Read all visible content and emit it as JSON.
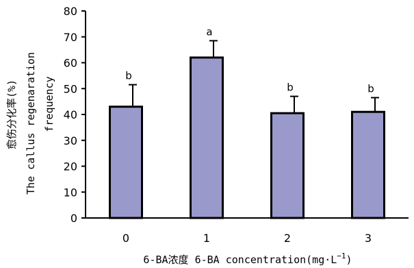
{
  "chart_data": {
    "type": "bar",
    "categories": [
      "0",
      "1",
      "2",
      "3"
    ],
    "values": [
      43,
      62,
      40.5,
      41
    ],
    "errors": [
      8.5,
      6.5,
      6.5,
      5.5
    ],
    "significance": [
      "b",
      "a",
      "b",
      "b"
    ],
    "ylim": [
      0,
      80
    ],
    "yticks": [
      0,
      10,
      20,
      30,
      40,
      50,
      60,
      70,
      80
    ],
    "ylabel_cn": "愈伤分化率(%)",
    "ylabel_en_1": "The callus regenaration",
    "ylabel_en_2": "frequency",
    "xlabel": "6-BA浓度 6-BA concentration(mg·L",
    "xlabel_sup": "−1",
    "xlabel_close": ")",
    "bar_color": "#9999cc",
    "edge_color": "#000000",
    "grid": false,
    "legend": "none"
  }
}
